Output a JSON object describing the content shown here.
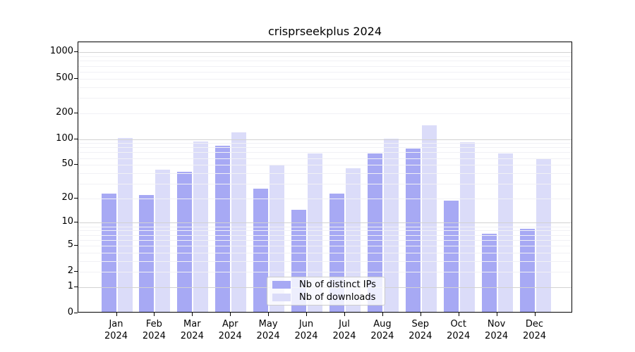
{
  "chart_data": {
    "type": "bar",
    "title": "crisprseekplus 2024",
    "categories": [
      "Jan",
      "Feb",
      "Mar",
      "Apr",
      "May",
      "Jun",
      "Jul",
      "Aug",
      "Sep",
      "Oct",
      "Nov",
      "Dec"
    ],
    "category_sub_label": "2024",
    "series": [
      {
        "name": "Nb of distinct IPs",
        "color": "#a7a9f4",
        "values": [
          22,
          21,
          40,
          80,
          25,
          14,
          22,
          66,
          75,
          18,
          7,
          8
        ]
      },
      {
        "name": "Nb of downloads",
        "color": "#dbdcf9",
        "values": [
          100,
          42,
          90,
          115,
          48,
          66,
          44,
          97,
          140,
          88,
          66,
          56
        ]
      }
    ],
    "yscale": "log10(1+x)",
    "yticks": [
      0,
      1,
      2,
      5,
      10,
      20,
      50,
      100,
      200,
      500,
      1000
    ],
    "ylim": [
      0,
      1200
    ],
    "xlabel": "",
    "ylabel": "",
    "grid": "horizontal; major gridlines at 1,10,100,1000; faint minor gridlines at 2-9 per decade",
    "legend_position": "lower center"
  },
  "colors": {
    "axis": "#000000",
    "major_grid": "#d2d2d2",
    "minor_grid": "#f1f1f5",
    "legend_border": "#cccccc",
    "background": "#ffffff"
  }
}
